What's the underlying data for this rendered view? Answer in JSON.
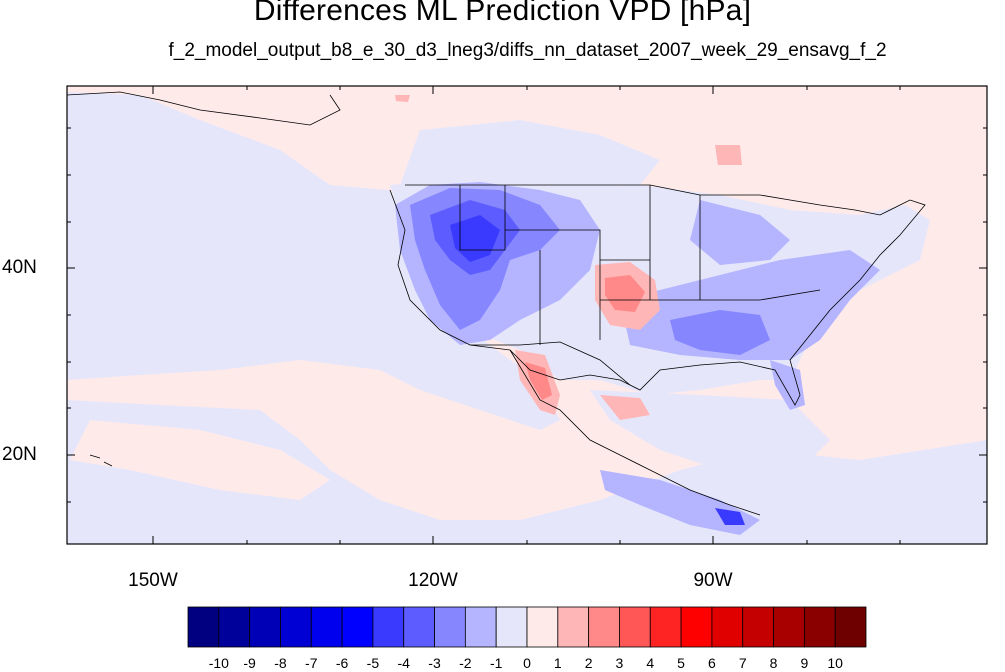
{
  "title": "Differences ML Prediction VPD [hPa]",
  "subtitle": "f_2_model_output_b8_e_30_d3_lneg3/diffs_nn_dataset_2007_week_29_ensavg_f_2",
  "background_color": "#ffeaea",
  "lat_labels": [
    "40N",
    "20N"
  ],
  "lon_labels": [
    "150W",
    "120W",
    "90W"
  ],
  "colorbar": {
    "labels": [
      "-10",
      "-9",
      "-8",
      "-7",
      "-6",
      "-5",
      "-4",
      "-3",
      "-2",
      "-1",
      "0",
      "1",
      "2",
      "3",
      "4",
      "5",
      "6",
      "7",
      "8",
      "9",
      "10"
    ],
    "colors": [
      "#000080",
      "#00009a",
      "#0000b6",
      "#0000d4",
      "#0000ee",
      "#0000ff",
      "#3a3aff",
      "#5d5dff",
      "#8686ff",
      "#b4b4ff",
      "#e6e6fb",
      "#ffeaea",
      "#ffb6b6",
      "#ff8888",
      "#ff5656",
      "#ff2424",
      "#ff0000",
      "#e00000",
      "#c40000",
      "#a80000",
      "#8a0000",
      "#6e0000"
    ]
  }
}
